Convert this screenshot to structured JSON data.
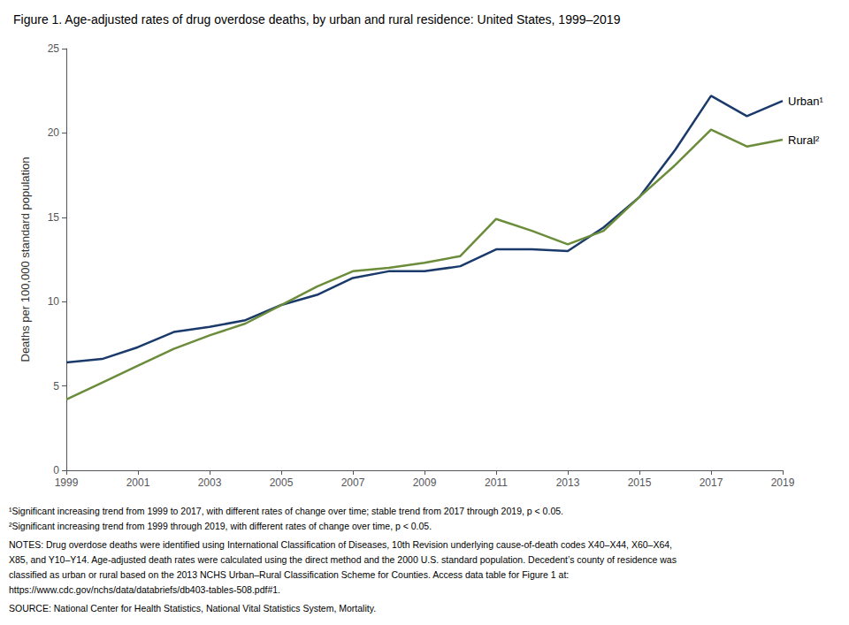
{
  "chart_data": {
    "type": "line",
    "title": "Figure 1. Age-adjusted rates of drug overdose deaths, by urban and rural residence: United States, 1999–2019",
    "y_label": "Deaths per 100,000 standard population",
    "x": [
      1999,
      2000,
      2001,
      2002,
      2003,
      2004,
      2005,
      2006,
      2007,
      2008,
      2009,
      2010,
      2011,
      2012,
      2013,
      2014,
      2015,
      2016,
      2017,
      2018,
      2019
    ],
    "series": [
      {
        "name": "Urban¹",
        "color": "#1a3a6b",
        "values": [
          6.4,
          6.6,
          7.3,
          8.2,
          8.5,
          8.9,
          9.8,
          10.4,
          11.4,
          11.8,
          11.8,
          12.1,
          13.1,
          13.1,
          13.0,
          14.4,
          16.2,
          19.0,
          22.2,
          21.0,
          21.9
        ]
      },
      {
        "name": "Rural²",
        "color": "#6b8c3a",
        "values": [
          4.2,
          5.2,
          6.2,
          7.2,
          8.0,
          8.7,
          9.8,
          10.9,
          11.8,
          12.0,
          12.3,
          12.7,
          14.9,
          14.2,
          13.4,
          14.2,
          16.2,
          18.1,
          20.2,
          19.2,
          19.6
        ]
      }
    ],
    "xlim": [
      1999,
      2019
    ],
    "xticks": [
      1999,
      2001,
      2003,
      2005,
      2007,
      2009,
      2011,
      2013,
      2015,
      2017,
      2019
    ],
    "ylim": [
      0,
      25
    ],
    "yticks": [
      0,
      5,
      10,
      15,
      20,
      25
    ],
    "grid": false,
    "notes": [
      "¹Significant increasing trend from 1999 to 2017, with different rates of change over time; stable trend from 2017 through 2019, p < 0.05.",
      "²Significant increasing trend from 1999 through 2019, with different rates of change over time, p < 0.05.",
      "NOTES: Drug overdose deaths were identified using International Classification of Diseases, 10th Revision underlying cause-of-death codes X40–X44, X60–X64,",
      "X85, and Y10–Y14. Age-adjusted death rates were calculated using the direct method and the 2000 U.S. standard population. Decedent’s county of residence was",
      "classified as urban or rural based on the 2013 NCHS Urban–Rural Classification Scheme for Counties. Access data table for Figure 1 at:",
      "https://www.cdc.gov/nchs/data/databriefs/db403-tables-508.pdf#1.",
      "SOURCE: National Center for Health Statistics, National Vital Statistics System, Mortality."
    ]
  }
}
